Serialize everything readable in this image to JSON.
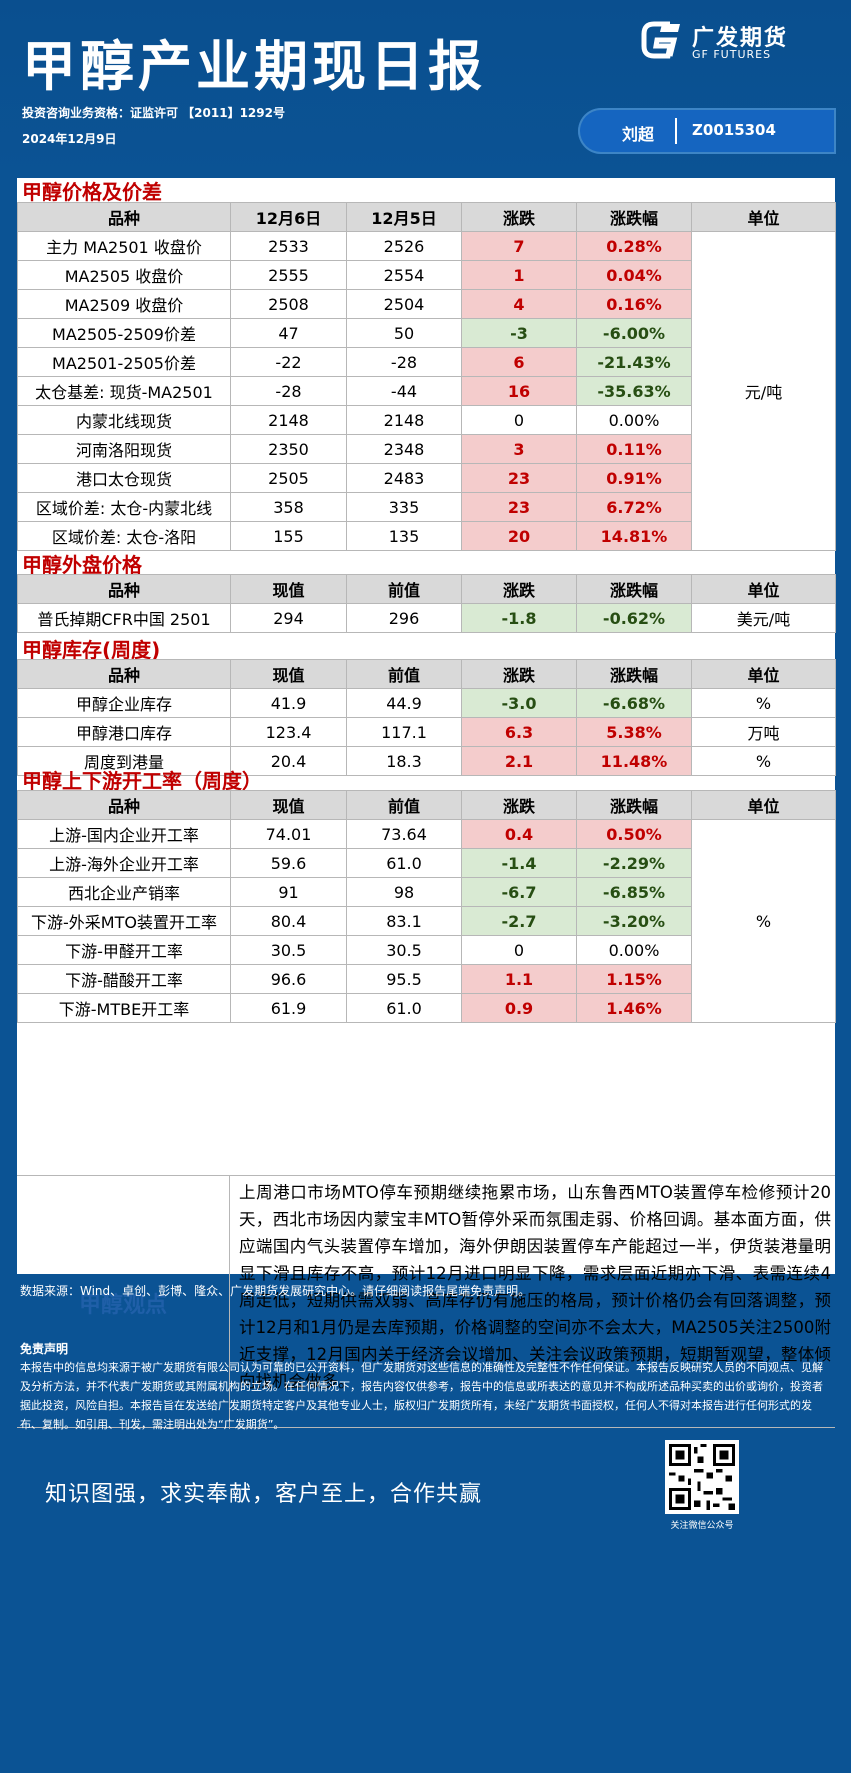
{
  "header": {
    "title": "甲醇产业期现日报",
    "logo_cn": "广发期货",
    "logo_en": "GF FUTURES",
    "license": "投资咨询业务资格：证监许可 【2011】1292号",
    "date": "2024年12月9日",
    "analyst_name": "刘超",
    "analyst_code": "Z0015304"
  },
  "sections": {
    "price": {
      "title": "甲醇价格及价差",
      "headers": [
        "品种",
        "12月6日",
        "12月5日",
        "涨跌",
        "涨跌幅",
        "单位"
      ],
      "unit": "元/吨",
      "rows": [
        {
          "name": "主力 MA2501 收盘价",
          "v1": "2533",
          "v2": "2526",
          "chg": "7",
          "pct": "0.28%",
          "dir": "up"
        },
        {
          "name": "MA2505 收盘价",
          "v1": "2555",
          "v2": "2554",
          "chg": "1",
          "pct": "0.04%",
          "dir": "up"
        },
        {
          "name": "MA2509 收盘价",
          "v1": "2508",
          "v2": "2504",
          "chg": "4",
          "pct": "0.16%",
          "dir": "up"
        },
        {
          "name": "MA2505-2509价差",
          "v1": "47",
          "v2": "50",
          "chg": "-3",
          "pct": "-6.00%",
          "dir": "down"
        },
        {
          "name": "MA2501-2505价差",
          "v1": "-22",
          "v2": "-28",
          "chg": "6",
          "pct": "-21.43%",
          "dir": "up",
          "pct_dir": "down"
        },
        {
          "name": "太仓基差: 现货-MA2501",
          "v1": "-28",
          "v2": "-44",
          "chg": "16",
          "pct": "-35.63%",
          "dir": "up",
          "pct_dir": "down"
        },
        {
          "name": "内蒙北线现货",
          "v1": "2148",
          "v2": "2148",
          "chg": "0",
          "pct": "0.00%",
          "dir": "flat"
        },
        {
          "name": "河南洛阳现货",
          "v1": "2350",
          "v2": "2348",
          "chg": "3",
          "pct": "0.11%",
          "dir": "up"
        },
        {
          "name": "港口太仓现货",
          "v1": "2505",
          "v2": "2483",
          "chg": "23",
          "pct": "0.91%",
          "dir": "up"
        },
        {
          "name": "区域价差: 太仓-内蒙北线",
          "v1": "358",
          "v2": "335",
          "chg": "23",
          "pct": "6.72%",
          "dir": "up"
        },
        {
          "name": "区域价差: 太仓-洛阳",
          "v1": "155",
          "v2": "135",
          "chg": "20",
          "pct": "14.81%",
          "dir": "up"
        }
      ]
    },
    "foreign": {
      "title": "甲醇外盘价格",
      "headers": [
        "品种",
        "现值",
        "前值",
        "涨跌",
        "涨跌幅",
        "单位"
      ],
      "rows": [
        {
          "name": "普氏掉期CFR中国 2501",
          "v1": "294",
          "v2": "296",
          "chg": "-1.8",
          "pct": "-0.62%",
          "dir": "down",
          "unit": "美元/吨"
        }
      ]
    },
    "inventory": {
      "title": "甲醇库存(周度)",
      "headers": [
        "品种",
        "现值",
        "前值",
        "涨跌",
        "涨跌幅",
        "单位"
      ],
      "rows": [
        {
          "name": "甲醇企业库存",
          "v1": "41.9",
          "v2": "44.9",
          "chg": "-3.0",
          "pct": "-6.68%",
          "dir": "down",
          "unit": "%"
        },
        {
          "name": "甲醇港口库存",
          "v1": "123.4",
          "v2": "117.1",
          "chg": "6.3",
          "pct": "5.38%",
          "dir": "up",
          "unit": "万吨"
        },
        {
          "name": "周度到港量",
          "v1": "20.4",
          "v2": "18.3",
          "chg": "2.1",
          "pct": "11.48%",
          "dir": "up",
          "unit": "%"
        }
      ]
    },
    "operating": {
      "title": "甲醇上下游开工率（周度）",
      "headers": [
        "品种",
        "现值",
        "前值",
        "涨跌",
        "涨跌幅",
        "单位"
      ],
      "unit": "%",
      "rows": [
        {
          "name": "上游-国内企业开工率",
          "v1": "74.01",
          "v2": "73.64",
          "chg": "0.4",
          "pct": "0.50%",
          "dir": "up"
        },
        {
          "name": "上游-海外企业开工率",
          "v1": "59.6",
          "v2": "61.0",
          "chg": "-1.4",
          "pct": "-2.29%",
          "dir": "down"
        },
        {
          "name": "西北企业产销率",
          "v1": "91",
          "v2": "98",
          "chg": "-6.7",
          "pct": "-6.85%",
          "dir": "down"
        },
        {
          "name": "下游-外采MTO装置开工率",
          "v1": "80.4",
          "v2": "83.1",
          "chg": "-2.7",
          "pct": "-3.20%",
          "dir": "down"
        },
        {
          "name": "下游-甲醛开工率",
          "v1": "30.5",
          "v2": "30.5",
          "chg": "0",
          "pct": "0.00%",
          "dir": "flat"
        },
        {
          "name": "下游-醋酸开工率",
          "v1": "96.6",
          "v2": "95.5",
          "chg": "1.1",
          "pct": "1.15%",
          "dir": "up"
        },
        {
          "name": "下游-MTBE开工率",
          "v1": "61.9",
          "v2": "61.0",
          "chg": "0.9",
          "pct": "1.46%",
          "dir": "up"
        }
      ]
    }
  },
  "view": {
    "label": "甲醇观点",
    "text": "上周港口市场MTO停车预期继续拖累市场，山东鲁西MTO装置停车检修预计20天，西北市场因内蒙宝丰MTO暂停外采而氛围走弱、价格回调。基本面方面，供应端国内气头装置停车增加，海外伊朗因装置停车产能超过一半，伊货装港量明显下滑且库存不高，预计12月进口明显下降，需求层面近期亦下滑、表需连续4周走低，短期供需双弱、高库存仍有施压的格局，预计价格仍会有回落调整，预计12月和1月仍是去库预期，价格调整的空间亦不会太大，MA2505关注2500附近支撑，12月国内关于经济会议增加、关注会议政策预期，短期暂观望，整体倾向找机会做多。"
  },
  "footer": {
    "source": "数据来源：Wind、卓创、彭博、隆众、广发期货发展研究中心。请仔细阅读报告尾端免责声明。",
    "disclaimer_title": "免责声明",
    "disclaimer_text": "本报告中的信息均来源于被广发期货有限公司认为可靠的已公开资料，但广发期货对这些信息的准确性及完整性不作任何保证。本报告反映研究人员的不同观点、见解及分析方法，并不代表广发期货或其附属机构的立场。在任何情况下，报告内容仅供参考，报告中的信息或所表达的意见并不构成所述品种买卖的出价或询价，投资者据此投资，风险自担。本报告旨在发送给广发期货特定客户及其他专业人士，版权归广发期货所有，未经广发期货书面授权，任何人不得对本报告进行任何形式的发布、复制。如引用、刊发，需注明出处为“广发期货”。",
    "slogan": "知识图强，求实奉献，客户至上，合作共赢",
    "qr_caption": "关注微信公众号"
  }
}
